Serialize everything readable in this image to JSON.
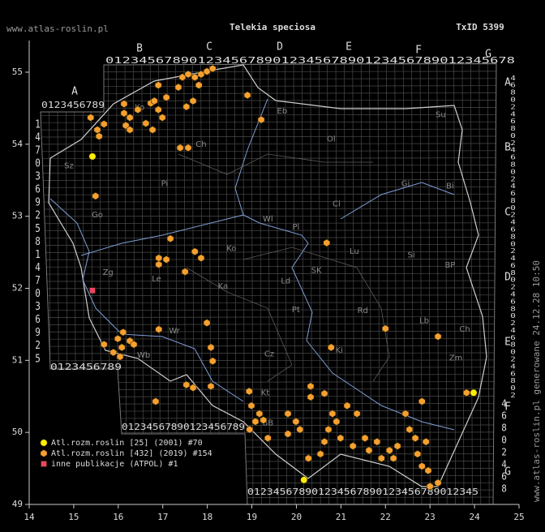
{
  "header": {
    "site": "www.atlas-roslin.pl",
    "title": "Telekia speciosa",
    "taxon_id": "TxID 5399"
  },
  "side_note": "www.atlas-roslin.pl generowane 24.12.28 10:50",
  "xlim": [
    14,
    25
  ],
  "ylim": [
    49,
    55
  ],
  "xticks": [
    14,
    15,
    16,
    17,
    18,
    19,
    20,
    21,
    22,
    23,
    24,
    25
  ],
  "yticks": [
    49,
    50,
    51,
    52,
    53,
    54,
    55
  ],
  "grid_columns": [
    "A",
    "B",
    "C",
    "D",
    "E",
    "F",
    "G"
  ],
  "grid_rows": [
    "A",
    "B",
    "C",
    "D",
    "E",
    "F",
    "G"
  ],
  "digit_rows": {
    "top": "0123456789012345678901234567890123456789012345678",
    "block_a_top": "0123456789",
    "block_a_bottom": "0123456789",
    "middle_bottom": "01234567890123456789",
    "bottom": "012345678901234567890123456789012345",
    "left": "1470369258147036925",
    "right": "468024680246802468024680246802468024680246802",
    "right_g": "46802468"
  },
  "regions": [
    {
      "label": "Ko",
      "lon": 16.48,
      "lat": 54.51
    },
    {
      "label": "Eb",
      "lon": 19.68,
      "lat": 54.46
    },
    {
      "label": "Ol",
      "lon": 20.78,
      "lat": 54.07
    },
    {
      "label": "Su",
      "lon": 23.24,
      "lat": 54.41
    },
    {
      "label": "Ch",
      "lon": 17.86,
      "lat": 54.0
    },
    {
      "label": "Sz",
      "lon": 14.89,
      "lat": 53.7
    },
    {
      "label": "Pi",
      "lon": 17.04,
      "lat": 53.45
    },
    {
      "label": "Gi",
      "lon": 22.45,
      "lat": 53.45
    },
    {
      "label": "Bi",
      "lon": 23.45,
      "lat": 53.42
    },
    {
      "label": "Ci",
      "lon": 20.9,
      "lat": 53.17
    },
    {
      "label": "Wl",
      "lon": 19.36,
      "lat": 52.96
    },
    {
      "label": "Pl",
      "lon": 19.99,
      "lat": 52.85
    },
    {
      "label": "Go",
      "lon": 15.53,
      "lat": 53.02
    },
    {
      "label": "Ko",
      "lon": 18.54,
      "lat": 52.55
    },
    {
      "label": "Zg",
      "lon": 15.77,
      "lat": 52.22
    },
    {
      "label": "Le",
      "lon": 16.86,
      "lat": 52.13
    },
    {
      "label": "Ka",
      "lon": 18.35,
      "lat": 52.03
    },
    {
      "label": "Ld",
      "lon": 19.76,
      "lat": 52.1
    },
    {
      "label": "SK",
      "lon": 20.45,
      "lat": 52.25
    },
    {
      "label": "Lu",
      "lon": 21.3,
      "lat": 52.51
    },
    {
      "label": "Si",
      "lon": 22.58,
      "lat": 52.46
    },
    {
      "label": "BP",
      "lon": 23.45,
      "lat": 52.32
    },
    {
      "label": "Pt",
      "lon": 19.99,
      "lat": 51.7
    },
    {
      "label": "Rd",
      "lon": 21.49,
      "lat": 51.69
    },
    {
      "label": "Lb",
      "lon": 22.87,
      "lat": 51.55
    },
    {
      "label": "Ch",
      "lon": 23.78,
      "lat": 51.43
    },
    {
      "label": "Wr",
      "lon": 17.26,
      "lat": 51.41
    },
    {
      "label": "Ki",
      "lon": 20.96,
      "lat": 51.14
    },
    {
      "label": "Zm",
      "lon": 23.58,
      "lat": 51.03
    },
    {
      "label": "Cz",
      "lon": 19.39,
      "lat": 51.09
    },
    {
      "label": "Wb",
      "lon": 16.57,
      "lat": 51.07
    },
    {
      "label": "Kt",
      "lon": 19.3,
      "lat": 50.55
    },
    {
      "label": "BB",
      "lon": 19.36,
      "lat": 50.13
    }
  ],
  "layers": [
    {
      "name": "Atl.rozm.roslin [25] (2001) #70",
      "color": "#ffee00",
      "shape": "circle",
      "points": [
        [
          15.42,
          53.83
        ],
        [
          20.17,
          49.34
        ],
        [
          23.98,
          50.55
        ]
      ]
    },
    {
      "name": "Atl.rozm.roslin [432] (2019) #154",
      "color": "#f5a030",
      "shape": "diamond",
      "points": [
        [
          15.38,
          54.37
        ],
        [
          15.53,
          54.2
        ],
        [
          15.57,
          54.11
        ],
        [
          15.68,
          54.28
        ],
        [
          16.13,
          54.56
        ],
        [
          16.13,
          54.43
        ],
        [
          16.26,
          54.37
        ],
        [
          16.17,
          54.26
        ],
        [
          16.26,
          54.2
        ],
        [
          16.44,
          54.48
        ],
        [
          16.62,
          54.29
        ],
        [
          16.73,
          54.57
        ],
        [
          16.9,
          54.82
        ],
        [
          16.81,
          54.6
        ],
        [
          16.9,
          54.48
        ],
        [
          17.08,
          54.65
        ],
        [
          16.99,
          54.37
        ],
        [
          16.77,
          54.2
        ],
        [
          17.35,
          54.79
        ],
        [
          17.44,
          54.93
        ],
        [
          17.57,
          54.97
        ],
        [
          17.72,
          54.93
        ],
        [
          17.86,
          54.97
        ],
        [
          17.99,
          55.01
        ],
        [
          18.12,
          55.05
        ],
        [
          17.81,
          54.82
        ],
        [
          17.68,
          54.6
        ],
        [
          17.53,
          54.52
        ],
        [
          17.39,
          53.95
        ],
        [
          17.57,
          53.95
        ],
        [
          18.9,
          54.68
        ],
        [
          19.21,
          54.34
        ],
        [
          15.49,
          53.28
        ],
        [
          17.17,
          52.69
        ],
        [
          17.72,
          52.51
        ],
        [
          17.86,
          52.42
        ],
        [
          16.91,
          52.42
        ],
        [
          16.91,
          52.33
        ],
        [
          17.08,
          52.4
        ],
        [
          17.5,
          52.23
        ],
        [
          17.99,
          51.52
        ],
        [
          16.91,
          51.43
        ],
        [
          16.11,
          51.39
        ],
        [
          15.99,
          51.3
        ],
        [
          16.26,
          51.27
        ],
        [
          16.08,
          51.18
        ],
        [
          15.89,
          51.11
        ],
        [
          16.04,
          51.05
        ],
        [
          16.35,
          51.22
        ],
        [
          15.68,
          51.22
        ],
        [
          18.08,
          51.18
        ],
        [
          18.12,
          50.99
        ],
        [
          17.53,
          50.66
        ],
        [
          17.68,
          50.62
        ],
        [
          16.84,
          50.43
        ],
        [
          18.08,
          50.64
        ],
        [
          18.94,
          50.57
        ],
        [
          18.99,
          50.37
        ],
        [
          19.17,
          50.26
        ],
        [
          19.08,
          50.15
        ],
        [
          18.95,
          50.04
        ],
        [
          19.26,
          50.17
        ],
        [
          19.36,
          49.92
        ],
        [
          19.81,
          50.26
        ],
        [
          19.99,
          50.15
        ],
        [
          20.08,
          50.04
        ],
        [
          19.81,
          49.98
        ],
        [
          20.32,
          50.64
        ],
        [
          20.32,
          50.49
        ],
        [
          20.63,
          50.54
        ],
        [
          20.81,
          50.26
        ],
        [
          20.9,
          50.15
        ],
        [
          20.72,
          50.04
        ],
        [
          21.14,
          50.37
        ],
        [
          21.36,
          50.26
        ],
        [
          21.27,
          49.81
        ],
        [
          21.54,
          49.92
        ],
        [
          21.63,
          49.75
        ],
        [
          21.81,
          49.87
        ],
        [
          21.91,
          49.64
        ],
        [
          22.09,
          49.75
        ],
        [
          22.18,
          49.64
        ],
        [
          22.27,
          49.81
        ],
        [
          22.45,
          50.26
        ],
        [
          22.54,
          50.04
        ],
        [
          22.67,
          49.92
        ],
        [
          22.82,
          50.43
        ],
        [
          22.91,
          49.87
        ],
        [
          22.72,
          49.7
        ],
        [
          22.82,
          49.53
        ],
        [
          22.96,
          49.47
        ],
        [
          23.0,
          49.25
        ],
        [
          23.18,
          49.3
        ],
        [
          22.0,
          51.44
        ],
        [
          20.78,
          51.18
        ],
        [
          20.68,
          52.63
        ],
        [
          23.18,
          51.33
        ],
        [
          23.82,
          50.55
        ],
        [
          20.27,
          49.64
        ],
        [
          20.54,
          49.7
        ],
        [
          20.99,
          49.92
        ],
        [
          20.63,
          49.87
        ]
      ]
    },
    {
      "name": "inne publikacje (ATPOL) #1",
      "color": "#ee4466",
      "shape": "square",
      "points": [
        [
          15.42,
          51.97
        ]
      ]
    }
  ]
}
